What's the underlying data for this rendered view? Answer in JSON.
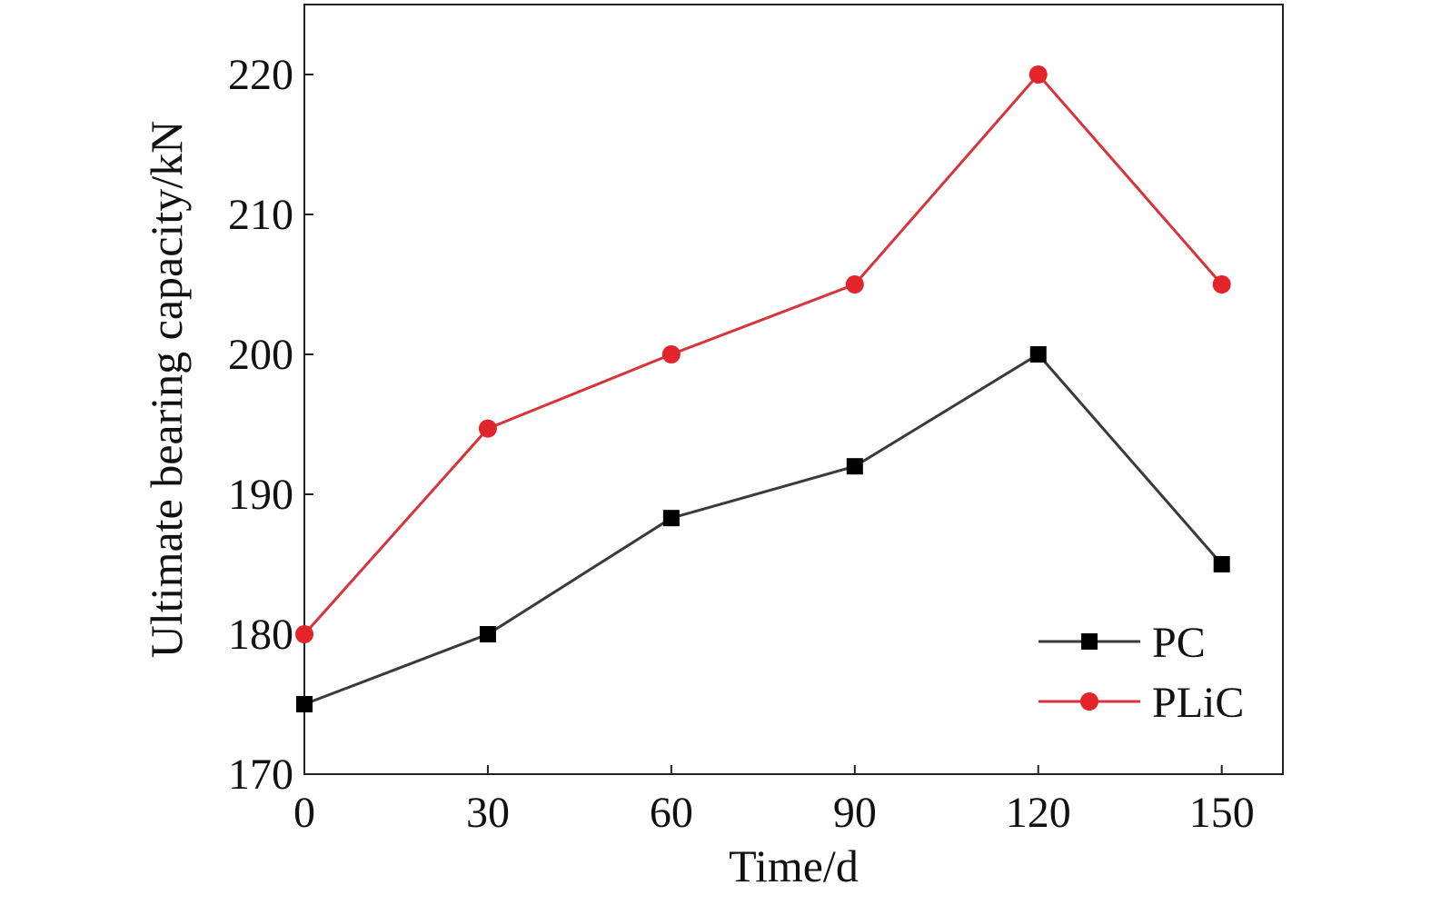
{
  "chart_data": {
    "type": "line",
    "title": "",
    "xlabel": "Time/d",
    "ylabel": "Ultimate bearing capacity/kN",
    "x": [
      0,
      30,
      60,
      90,
      120,
      150
    ],
    "xlim": [
      0,
      160
    ],
    "ylim": [
      170,
      225
    ],
    "xticks": [
      0,
      30,
      60,
      90,
      120,
      150
    ],
    "yticks": [
      170,
      180,
      190,
      200,
      210,
      220
    ],
    "grid": false,
    "legend_position": "bottom-right",
    "series": [
      {
        "name": "PC",
        "values": [
          175,
          180,
          188.3,
          192,
          200,
          185
        ],
        "color": "#3a3a3a",
        "marker_color": "#000000",
        "marker": "square"
      },
      {
        "name": "PLiC",
        "values": [
          180,
          194.7,
          200,
          205,
          220,
          205
        ],
        "color": "#d9333a",
        "marker_color": "#e3242b",
        "marker": "circle"
      }
    ]
  }
}
